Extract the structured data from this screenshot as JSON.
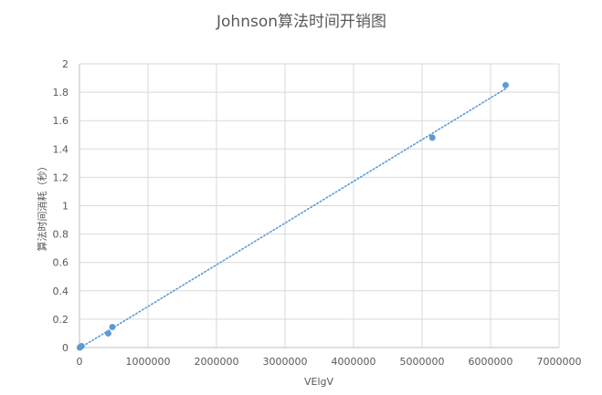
{
  "chart_data": {
    "type": "scatter",
    "title": "Johnson算法时间开销图",
    "xlabel": "VElgV",
    "ylabel": "算法时间消耗（秒）",
    "xlim": [
      0,
      7000000
    ],
    "ylim": [
      0,
      2
    ],
    "xticks": [
      0,
      1000000,
      2000000,
      3000000,
      4000000,
      5000000,
      6000000,
      7000000
    ],
    "yticks": [
      0,
      0.2,
      0.4,
      0.6,
      0.8,
      1,
      1.2,
      1.4,
      1.6,
      1.8,
      2
    ],
    "xtick_labels": [
      "0",
      "1000000",
      "2000000",
      "3000000",
      "4000000",
      "5000000",
      "6000000",
      "7000000"
    ],
    "ytick_labels": [
      "0",
      "0.2",
      "0.4",
      "0.6",
      "0.8",
      "1",
      "1.2",
      "1.4",
      "1.6",
      "1.8",
      "2"
    ],
    "grid": true,
    "legend": "none",
    "marker_color": "#5B9BD5",
    "trendline": {
      "type": "linear",
      "style": "dotted",
      "color": "#5B9BD5"
    },
    "series": [
      {
        "points": [
          {
            "x": 5000,
            "y": 0.0
          },
          {
            "x": 15000,
            "y": 0.005
          },
          {
            "x": 30000,
            "y": 0.01
          },
          {
            "x": 420000,
            "y": 0.1
          },
          {
            "x": 480000,
            "y": 0.145
          },
          {
            "x": 5150000,
            "y": 1.48
          },
          {
            "x": 6220000,
            "y": 1.85
          }
        ]
      }
    ]
  }
}
